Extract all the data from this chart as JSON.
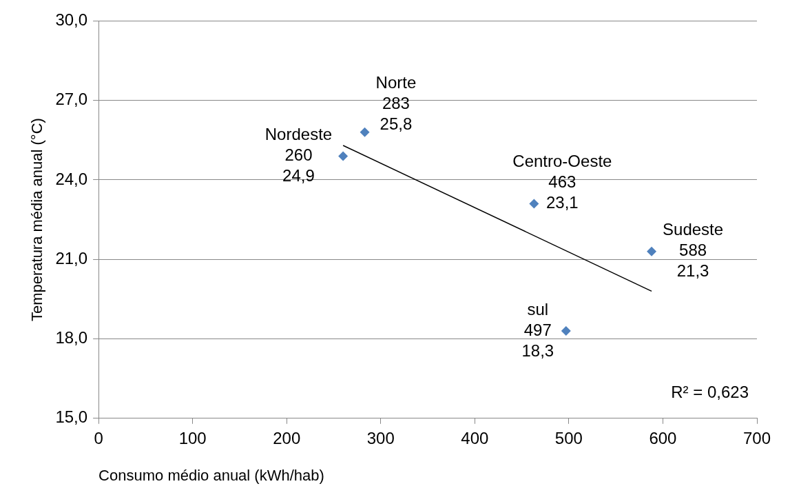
{
  "chart_data": {
    "type": "scatter",
    "xlabel": "Consumo médio anual (kWh/hab)",
    "ylabel": "Temperatura média anual (°C)",
    "xlim": [
      0,
      700
    ],
    "xticks": [
      0,
      100,
      200,
      300,
      400,
      500,
      600,
      700
    ],
    "ylim": [
      15,
      30
    ],
    "yticks": [
      {
        "value": 15,
        "label": "15,0"
      },
      {
        "value": 18,
        "label": "18,0"
      },
      {
        "value": 21,
        "label": "21,0"
      },
      {
        "value": 24,
        "label": "24,0"
      },
      {
        "value": 27,
        "label": "27,0"
      },
      {
        "value": 30,
        "label": "30,0"
      }
    ],
    "grid": "y",
    "legend": false,
    "marker": "diamond",
    "series": [
      {
        "color": "#4f81bd",
        "x": [
          260,
          283,
          463,
          588,
          497
        ],
        "values": [
          24.9,
          25.8,
          23.1,
          21.3,
          18.3
        ],
        "value_labels": [
          "260\n24,9",
          "283\n25,8",
          "463\n23,1",
          "588\n21,3",
          "497\n18,3"
        ]
      },
      {
        "type": "line",
        "color": "#000000",
        "marker": "none",
        "x": [
          260,
          588
        ],
        "values": [
          25.3,
          19.8
        ]
      }
    ],
    "annotations": [
      {
        "text": "Nordeste",
        "x": 260,
        "y": 24.9
      },
      {
        "text": "Norte",
        "x": 283,
        "y": 25.8
      },
      {
        "text": "Centro-Oeste",
        "x": 463,
        "y": 23.1
      },
      {
        "text": "Sudeste",
        "x": 588,
        "y": 21.3
      },
      {
        "text": "sul",
        "x": 497,
        "y": 18.3
      },
      "R² = 0,623"
    ]
  }
}
